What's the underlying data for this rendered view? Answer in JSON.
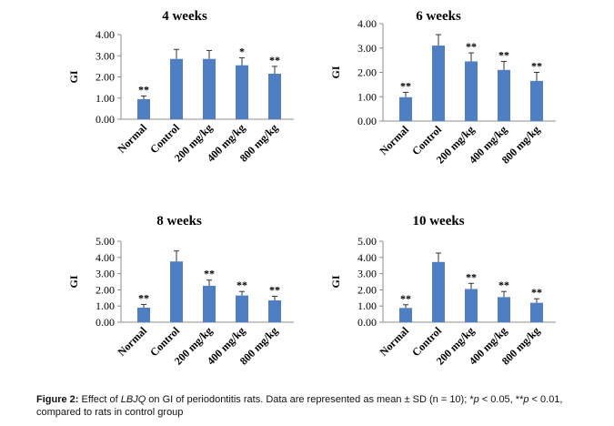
{
  "chart_data": [
    {
      "type": "bar",
      "title": "4 weeks",
      "ylabel": "GI",
      "ylim": [
        0,
        4
      ],
      "ytick_labels": [
        "0.00",
        "1.00",
        "2.00",
        "3.00",
        "4.00"
      ],
      "categories": [
        "Normal",
        "Control",
        "200 mg/kg",
        "400 mg/kg",
        "800 mg/kg"
      ],
      "values": [
        0.95,
        2.85,
        2.85,
        2.55,
        2.15
      ],
      "errors": [
        0.15,
        0.45,
        0.4,
        0.35,
        0.35
      ],
      "annotations": [
        "**",
        "",
        "",
        "*",
        "**"
      ]
    },
    {
      "type": "bar",
      "title": "6 weeks",
      "ylabel": "GI",
      "ylim": [
        0,
        4
      ],
      "ytick_labels": [
        "0.00",
        "1.00",
        "2.00",
        "3.00",
        "4.00"
      ],
      "categories": [
        "Normal",
        "Control",
        "200 mg/kg",
        "400 mg/kg",
        "800 mg/kg"
      ],
      "values": [
        0.98,
        3.1,
        2.45,
        2.1,
        1.65
      ],
      "errors": [
        0.2,
        0.45,
        0.35,
        0.35,
        0.35
      ],
      "annotations": [
        "**",
        "",
        "**",
        "**",
        "**"
      ]
    },
    {
      "type": "bar",
      "title": "8 weeks",
      "ylabel": "GI",
      "ylim": [
        0,
        5
      ],
      "ytick_labels": [
        "0.00",
        "1.00",
        "2.00",
        "3.00",
        "4.00",
        "5.00"
      ],
      "categories": [
        "Normal",
        "Control",
        "200 mg/kg",
        "400 mg/kg",
        "800 mg/kg"
      ],
      "values": [
        0.9,
        3.75,
        2.25,
        1.65,
        1.35
      ],
      "errors": [
        0.2,
        0.65,
        0.35,
        0.25,
        0.25
      ],
      "annotations": [
        "**",
        "",
        "**",
        "**",
        "**"
      ]
    },
    {
      "type": "bar",
      "title": "10 weeks",
      "ylabel": "GI",
      "ylim": [
        0,
        5
      ],
      "ytick_labels": [
        "0.00",
        "1.00",
        "2.00",
        "3.00",
        "4.00",
        "5.00"
      ],
      "categories": [
        "Normal",
        "Control",
        "200 mg/kg",
        "400 mg/kg",
        "800 mg/kg"
      ],
      "values": [
        0.88,
        3.72,
        2.05,
        1.55,
        1.2
      ],
      "errors": [
        0.2,
        0.55,
        0.35,
        0.35,
        0.25
      ],
      "annotations": [
        "**",
        "",
        "**",
        "**",
        "**"
      ]
    }
  ],
  "colors": {
    "bar": "#4f7fc2",
    "axis": "#8c8c8c",
    "text": "#000000"
  },
  "caption": {
    "label": "Figure 2:",
    "p1": " Effect of ",
    "p2": "LBJQ",
    "p3": " on GI of periodontitis rats. Data are represented as mean ± SD (n = 10); *",
    "p4": "p",
    "p5": " < 0.05, **",
    "p6": "p",
    "p7": " < 0.01, compared to rats in control group"
  }
}
